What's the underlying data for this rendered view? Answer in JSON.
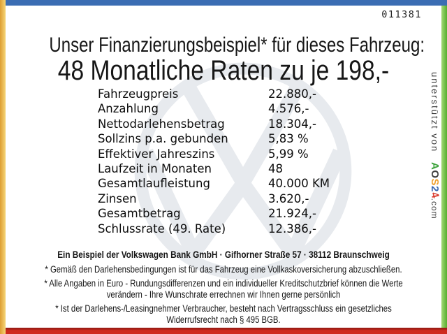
{
  "doc_number": "011381",
  "header": {
    "line1": "Unser Finanzierungsbeispiel* für dieses Fahrzeug:",
    "line2": "48 Monatliche Raten zu je 198,-"
  },
  "finance_table": {
    "rows": [
      {
        "label": "Fahrzeugpreis",
        "value": "22.880,-"
      },
      {
        "label": "Anzahlung",
        "value": "4.576,-"
      },
      {
        "label": "Nettodarlehensbetrag",
        "value": "18.304,-"
      },
      {
        "label": "Sollzins p.a. gebunden",
        "value": "5,83 %"
      },
      {
        "label": "Effektiver Jahreszins",
        "value": "5,99 %"
      },
      {
        "label": "Laufzeit in Monaten",
        "value": "48"
      },
      {
        "label": "Gesamtlaufleistung",
        "value": "40.000 KM"
      },
      {
        "label": "Zinsen",
        "value": "3.620,-"
      },
      {
        "label": "Gesamtbetrag",
        "value": "21.924,-"
      },
      {
        "label": "Schlussrate (49. Rate)",
        "value": "12.386,-"
      }
    ]
  },
  "sidebar": {
    "supported_by": "unterstützt von ",
    "brand_letters": [
      {
        "ch": "A",
        "color": "#3da33c"
      },
      {
        "ch": "O",
        "color": "#3f3f3f"
      },
      {
        "ch": "S",
        "color": "#f09f2d"
      },
      {
        "ch": "2",
        "color": "#3a67b1"
      },
      {
        "ch": "4",
        "color": "#d8392c"
      }
    ],
    "brand_suffix": ".com"
  },
  "footer": {
    "bank_line": "Ein Beispiel der Volkswagen Bank GmbH · Gifhorner Straße 57 · 38112 Braunschweig",
    "disclaimer_lines": [
      "* Gemäß den Darlehensbedingungen ist für das Fahrzeug eine Vollkaskoversicherung abzuschließen.",
      "* Alle Angaben in Euro - Rundungsdifferenzen und ein individueller Kreditschutzbrief können die Werte",
      "verändern - Ihre Wunschrate errechnen wir Ihnen gerne persönlich",
      "* Ist der Darlehens-/Leasingnehmer Verbraucher, besteht nach Vertragsschluss ein gesetzliches",
      "Widerrufsrecht nach § 495 BGB."
    ]
  },
  "watermark": {
    "icon": "vw-logo",
    "color": "#e7eaee"
  },
  "colors": {
    "top_bar": "#3b6db3",
    "left_stripe_from": "#dd9e33",
    "left_stripe_to": "#f6d578",
    "right_stripe_from": "#a5d977",
    "right_stripe_to": "#57ae2e",
    "bottom_bar": "#cf2a1e"
  }
}
